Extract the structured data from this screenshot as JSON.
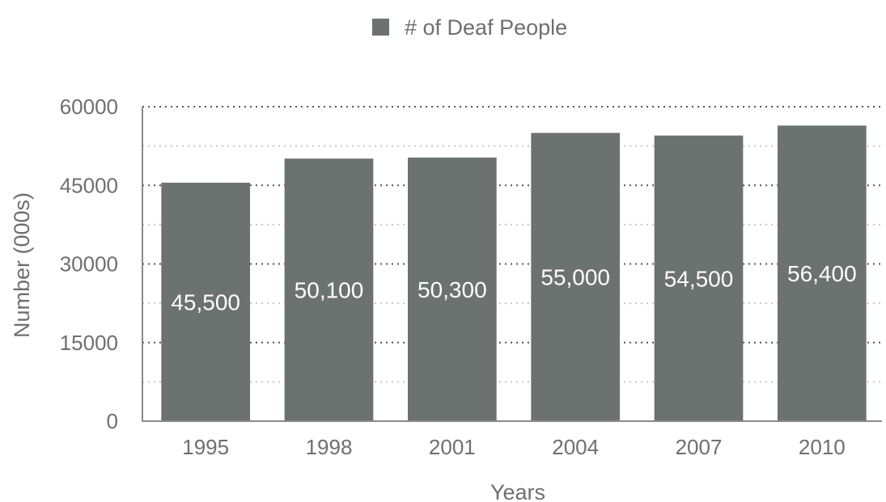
{
  "chart_data": {
    "type": "bar",
    "categories": [
      "1995",
      "1998",
      "2001",
      "2004",
      "2007",
      "2010"
    ],
    "series": [
      {
        "name": "# of Deaf People",
        "values": [
          45500,
          50100,
          50300,
          55000,
          54500,
          56400
        ]
      }
    ],
    "data_labels": [
      "45,500",
      "50,100",
      "50,300",
      "55,000",
      "54,500",
      "56,400"
    ],
    "xlabel": "Years",
    "ylabel": "Number (000s)",
    "ylim": [
      0,
      60000
    ],
    "yticks": [
      "0",
      "15000",
      "30000",
      "45000",
      "60000"
    ],
    "grid": true,
    "legend_position": "top-center",
    "colors": {
      "bar": "#6c726f",
      "axis": "#8a8a8a",
      "grid_major": "#555555",
      "grid_minor": "#c8c8c8",
      "text": "#6f6f6f"
    }
  }
}
